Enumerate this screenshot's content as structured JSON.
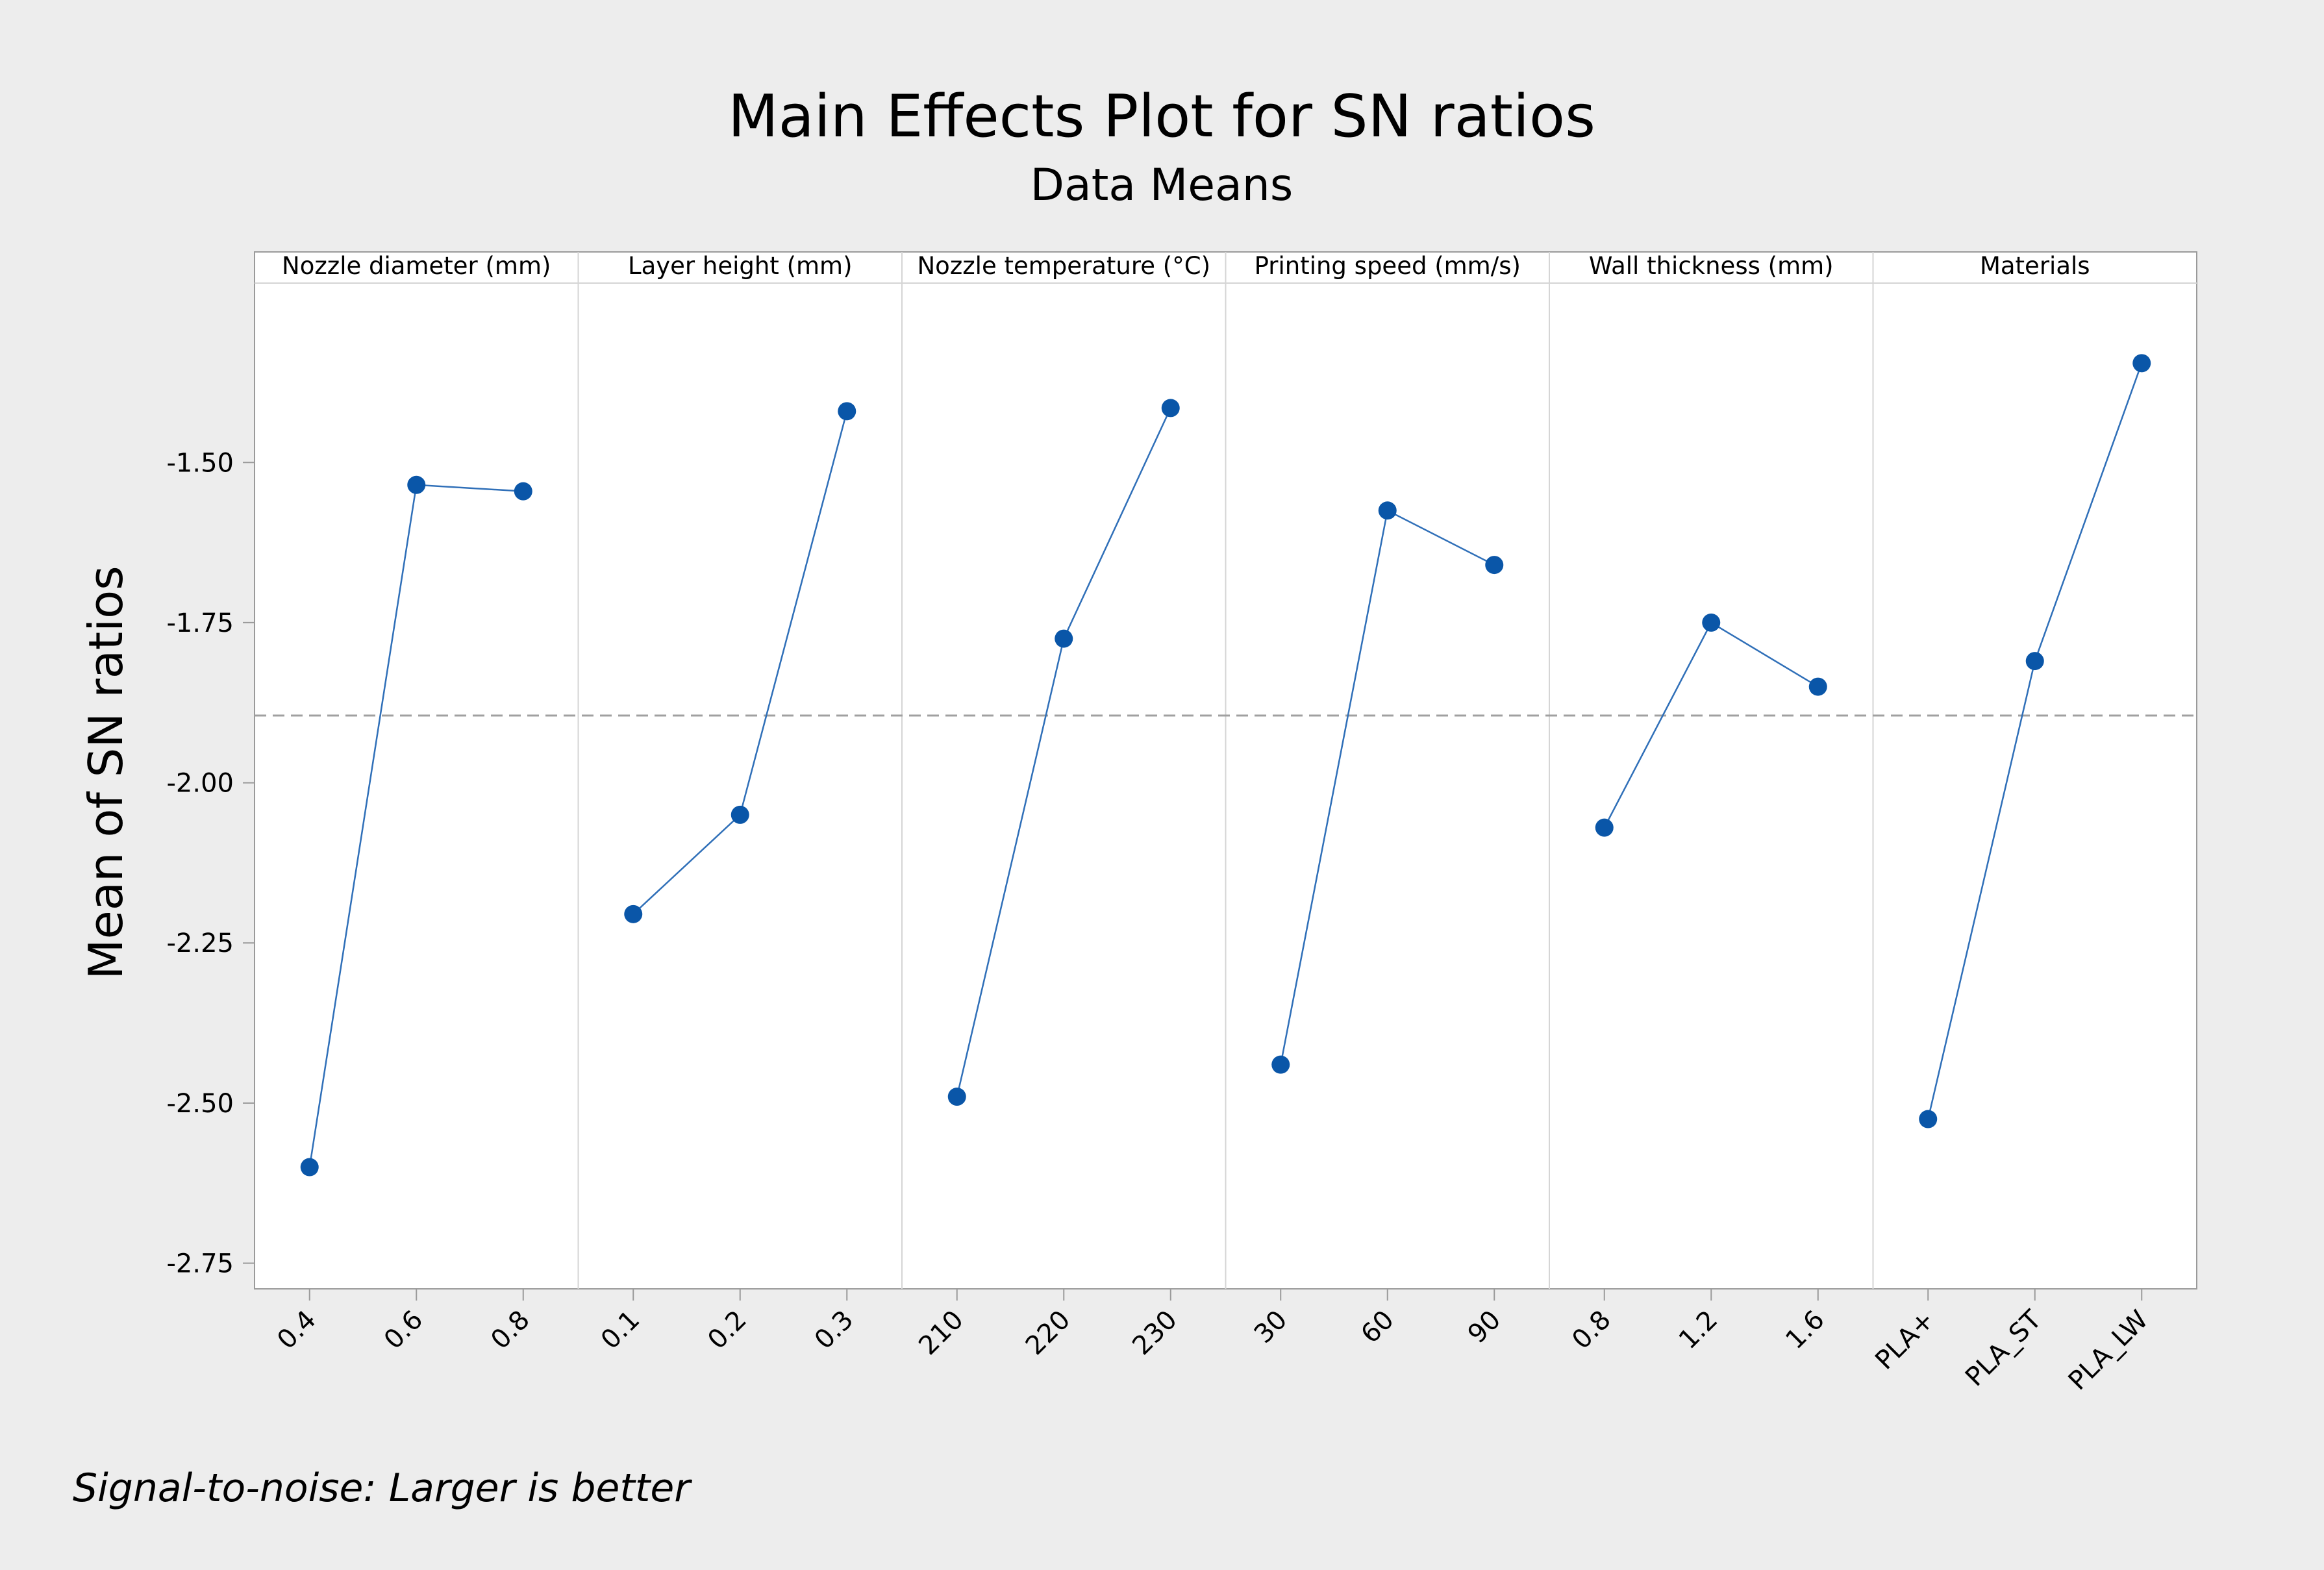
{
  "chart_data": {
    "type": "line",
    "title": "Main Effects Plot for SN ratios",
    "subtitle": "Data Means",
    "ylabel": "Mean of SN ratios",
    "footnote": "Signal-to-noise: Larger is better",
    "ylim": [
      -2.79,
      -1.22
    ],
    "yticks": [
      -1.5,
      -1.75,
      -2.0,
      -2.25,
      -2.5,
      -2.75
    ],
    "ytick_labels": [
      "-1.50",
      "-1.75",
      "-2.00",
      "-2.25",
      "-2.50",
      "-2.75"
    ],
    "reference_line": -1.895,
    "panels": [
      {
        "name": "Nozzle diameter  (mm)",
        "categories": [
          "0.4",
          "0.6",
          "0.8"
        ],
        "values": [
          -2.6,
          -1.535,
          -1.545
        ]
      },
      {
        "name": "Layer height (mm)",
        "categories": [
          "0.1",
          "0.2",
          "0.3"
        ],
        "values": [
          -2.205,
          -2.05,
          -1.42
        ]
      },
      {
        "name": "Nozzle temperature (°C)",
        "categories": [
          "210",
          "220",
          "230"
        ],
        "values": [
          -2.49,
          -1.775,
          -1.415
        ]
      },
      {
        "name": "Printing speed (mm/s)",
        "categories": [
          "30",
          "60",
          "90"
        ],
        "values": [
          -2.44,
          -1.575,
          -1.66
        ]
      },
      {
        "name": "Wall thickness (mm)",
        "categories": [
          "0.8",
          "1.2",
          "1.6"
        ],
        "values": [
          -2.07,
          -1.75,
          -1.85
        ]
      },
      {
        "name": "Materials",
        "categories": [
          "PLA+",
          "PLA_ST",
          "PLA_LW"
        ],
        "values": [
          -2.525,
          -1.81,
          -1.345
        ]
      }
    ],
    "colors": {
      "background": "#ededed",
      "plot_background": "#ffffff",
      "series": "#0a56a8",
      "line": "#2f6fb8",
      "reference": "#a0a0a0",
      "axis": "#9a9a9a",
      "divider": "#d5d5d5"
    }
  }
}
